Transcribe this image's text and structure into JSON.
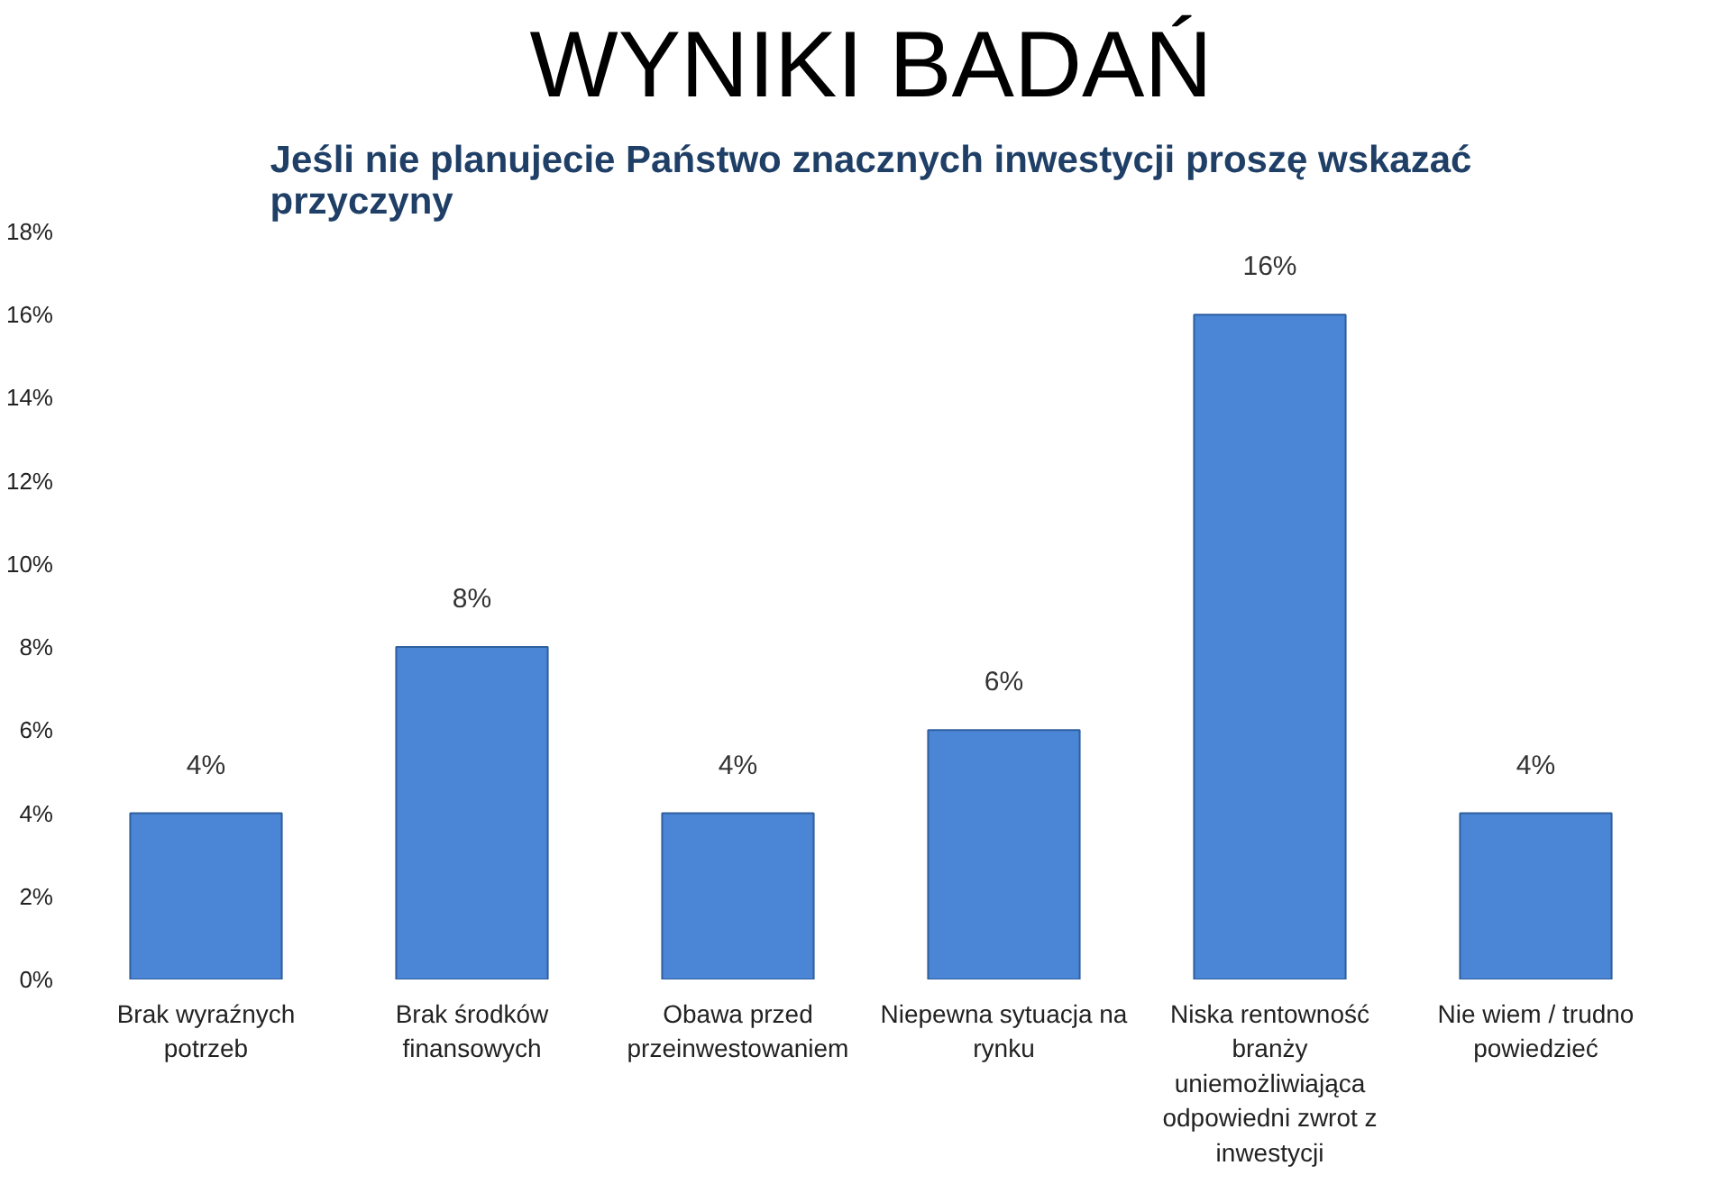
{
  "chart_data": {
    "type": "bar",
    "title": "WYNIKI BADAŃ",
    "subtitle": "Jeśli nie planujecie Państwo znacznych inwestycji proszę wskazać przyczyny",
    "categories": [
      "Brak wyraźnych potrzeb",
      "Brak środków finansowych",
      "Obawa przed przeinwestowaniem",
      "Niepewna sytuacja na rynku",
      "Niska rentowność branży uniemożliwiająca odpowiedni zwrot z inwestycji",
      "Nie wiem / trudno powiedzieć"
    ],
    "values": [
      4,
      8,
      4,
      6,
      16,
      4
    ],
    "color": "#4a85d6",
    "value_labels": [
      "4%",
      "8%",
      "4%",
      "6%",
      "16%",
      "4%"
    ],
    "ylim": [
      0,
      18
    ],
    "yticks": [
      {
        "value": 0,
        "label": "0%"
      },
      {
        "value": 2,
        "label": "2%"
      },
      {
        "value": 4,
        "label": "4%"
      },
      {
        "value": 6,
        "label": "6%"
      },
      {
        "value": 8,
        "label": "8%"
      },
      {
        "value": 10,
        "label": "10%"
      },
      {
        "value": 12,
        "label": "12%"
      },
      {
        "value": 14,
        "label": "14%"
      },
      {
        "value": 16,
        "label": "16%"
      },
      {
        "value": 18,
        "label": "18%"
      }
    ],
    "grid": false
  }
}
